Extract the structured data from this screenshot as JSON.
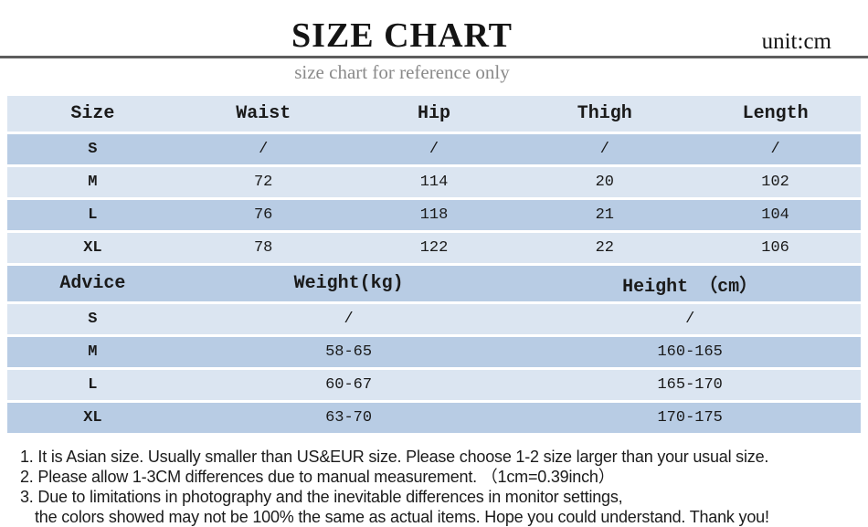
{
  "header": {
    "title": "SIZE CHART",
    "unit": "unit:cm",
    "subtitle": "size chart for reference only"
  },
  "size_table": {
    "columns": [
      "Size",
      "Waist",
      "Hip",
      "Thigh",
      "Length"
    ],
    "rows": [
      [
        "S",
        "/",
        "/",
        "/",
        "/"
      ],
      [
        "M",
        "72",
        "114",
        "20",
        "102"
      ],
      [
        "L",
        "76",
        "118",
        "21",
        "104"
      ],
      [
        "XL",
        "78",
        "122",
        "22",
        "106"
      ]
    ]
  },
  "advice_table": {
    "columns": [
      "Advice",
      "Weight(kg)",
      "Height （cm）"
    ],
    "rows": [
      [
        "S",
        "/",
        "/"
      ],
      [
        "M",
        "58-65",
        "160-165"
      ],
      [
        "L",
        "60-67",
        "165-170"
      ],
      [
        "XL",
        "63-70",
        "170-175"
      ]
    ]
  },
  "notes": [
    "1. It is Asian size.  Usually smaller than US&EUR size. Please choose 1-2 size larger than your usual size.",
    "2. Please allow 1-3CM differences due to manual measurement.  （1cm=0.39inch）",
    "3. Due to limitations in photography and the inevitable differences in monitor settings,",
    "the colors showed may not be 100% the same as actual items. Hope you could understand. Thank you!"
  ],
  "colors": {
    "row_light": "#dbe5f1",
    "row_dark": "#b8cce4",
    "divider": "#5d5d5d",
    "subtitle_text": "#8a8a8a",
    "table_text": "#1a1a1a",
    "title_text": "#141414",
    "notes_text": "#1b1b1b"
  },
  "chart_data": [
    {
      "type": "table",
      "title": "SIZE CHART",
      "unit": "cm",
      "columns": [
        "Size",
        "Waist",
        "Hip",
        "Thigh",
        "Length"
      ],
      "rows": [
        [
          "S",
          "/",
          "/",
          "/",
          "/"
        ],
        [
          "M",
          "72",
          "114",
          "20",
          "102"
        ],
        [
          "L",
          "76",
          "118",
          "21",
          "104"
        ],
        [
          "XL",
          "78",
          "122",
          "22",
          "106"
        ]
      ]
    },
    {
      "type": "table",
      "title": "Advice",
      "columns": [
        "Advice",
        "Weight(kg)",
        "Height （cm）"
      ],
      "rows": [
        [
          "S",
          "/",
          "/"
        ],
        [
          "M",
          "58-65",
          "160-165"
        ],
        [
          "L",
          "60-67",
          "165-170"
        ],
        [
          "XL",
          "63-70",
          "170-175"
        ]
      ]
    }
  ]
}
